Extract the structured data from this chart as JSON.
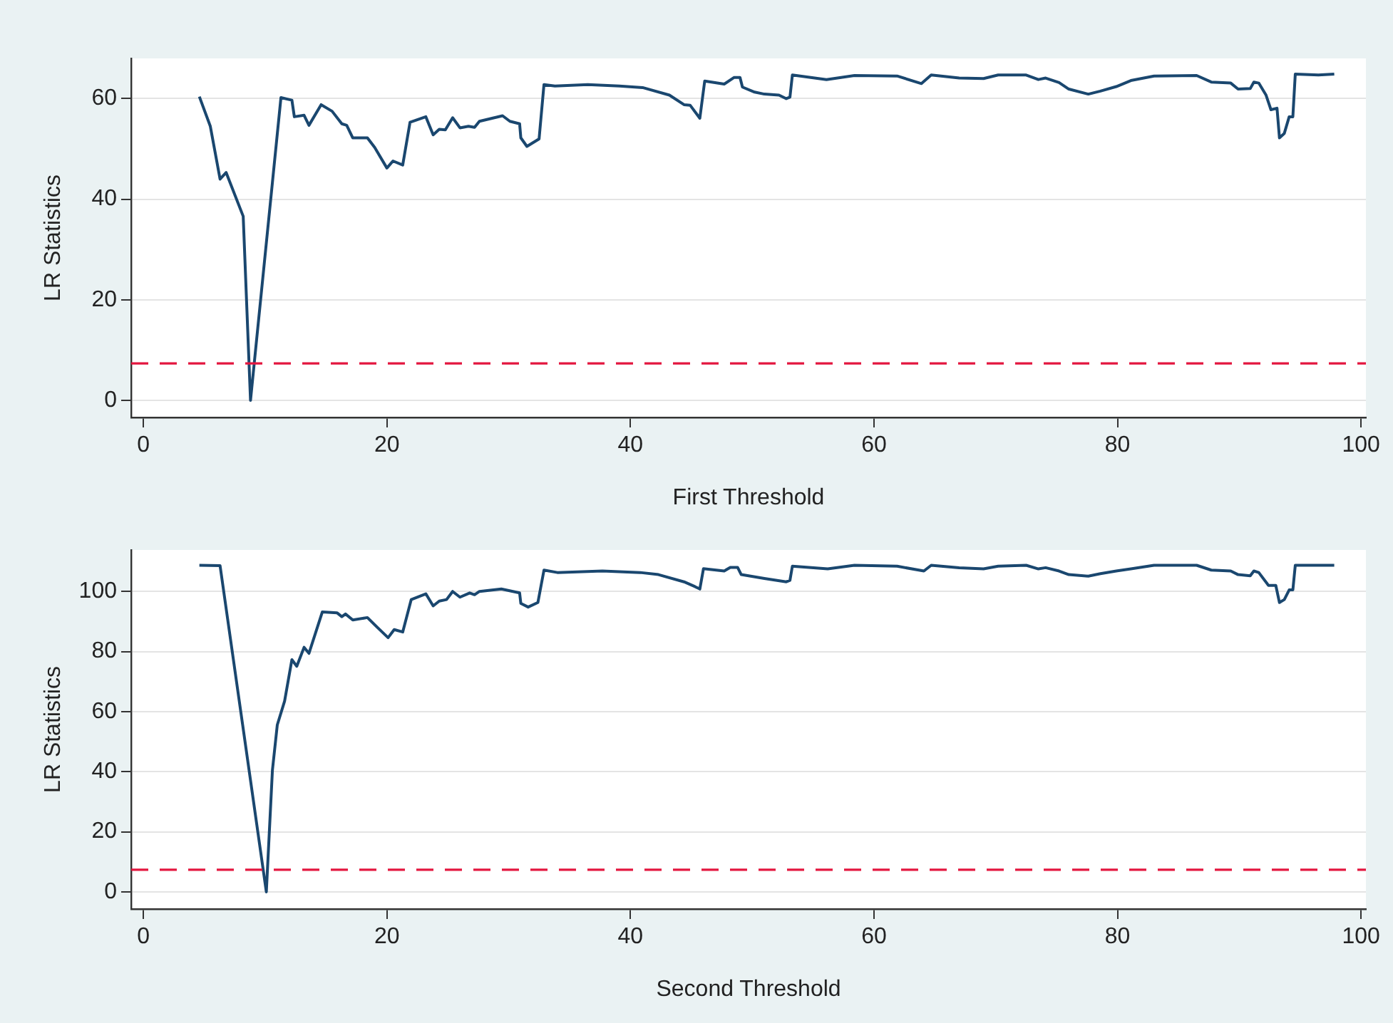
{
  "chart_data": [
    {
      "type": "line",
      "xlabel": "First Threshold",
      "ylabel": "LR Statistics",
      "xlim": [
        -1,
        100.4
      ],
      "ylim": [
        -3.4,
        68
      ],
      "xticks": [
        0,
        20,
        40,
        60,
        80,
        100
      ],
      "yticks": [
        0,
        20,
        40,
        60
      ],
      "grid": "y",
      "marker": "none",
      "x": [
        4.6,
        5.5,
        6.3,
        6.8,
        8.2,
        8.8,
        11.3,
        12.2,
        12.4,
        13.2,
        13.6,
        14.6,
        15.5,
        16.3,
        16.7,
        17.2,
        18.4,
        19.0,
        20.0,
        20.5,
        21.3,
        21.9,
        23.2,
        23.8,
        24.3,
        24.8,
        25.4,
        26.0,
        26.7,
        27.2,
        27.6,
        29.5,
        30.1,
        30.9,
        31.0,
        31.5,
        32.5,
        32.9,
        33.8,
        36.5,
        39.1,
        41.0,
        43.2,
        44.4,
        44.9,
        45.7,
        46.1,
        47.7,
        48.5,
        49.0,
        49.2,
        50.2,
        51.0,
        52.2,
        52.8,
        53.1,
        53.3,
        56.1,
        58.4,
        61.9,
        63.9,
        64.7,
        67.0,
        69.0,
        70.2,
        72.5,
        73.5,
        74.1,
        75.2,
        76.0,
        77.6,
        78.6,
        79.9,
        81.1,
        83.0,
        86.5,
        87.7,
        89.3,
        89.9,
        90.9,
        91.2,
        91.6,
        92.2,
        92.6,
        93.1,
        93.3,
        93.7,
        94.1,
        94.4,
        94.6,
        96.5,
        97.8
      ],
      "series": [
        {
          "color": "#1a476f",
          "values": [
            60.4,
            54.5,
            44,
            45.3,
            36.6,
            0,
            60.2,
            59.7,
            56.4,
            56.7,
            54.7,
            58.8,
            57.5,
            55,
            54.7,
            52.2,
            52.2,
            50.3,
            46.2,
            47.6,
            46.8,
            55.3,
            56.4,
            52.8,
            53.9,
            53.8,
            56.2,
            54.2,
            54.5,
            54.3,
            55.5,
            56.6,
            55.5,
            55,
            52.2,
            50.5,
            52,
            62.8,
            62.5,
            62.8,
            62.5,
            62.2,
            60.7,
            58.8,
            58.7,
            56.1,
            63.5,
            62.9,
            64.2,
            64.2,
            62.3,
            61.3,
            60.9,
            60.7,
            60.0,
            60.3,
            64.7,
            63.8,
            64.6,
            64.5,
            63.0,
            64.7,
            64.1,
            64.0,
            64.7,
            64.7,
            63.8,
            64.1,
            63.2,
            61.9,
            60.9,
            61.5,
            62.4,
            63.6,
            64.5,
            64.6,
            63.3,
            63.1,
            61.9,
            62.0,
            63.3,
            63.1,
            60.7,
            57.8,
            58.1,
            52.2,
            53.1,
            56.4,
            56.4,
            64.9,
            64.7,
            64.9
          ]
        }
      ],
      "ref_lines": [
        {
          "axis": "y",
          "value": 7.35,
          "color": "#e3163f",
          "line_style": "dashed"
        }
      ]
    },
    {
      "type": "line",
      "xlabel": "Second Threshold",
      "ylabel": "LR Statistics",
      "xlim": [
        -1,
        100.4
      ],
      "ylim": [
        -5.7,
        113.8
      ],
      "xticks": [
        0,
        20,
        40,
        60,
        80,
        100
      ],
      "yticks": [
        0,
        20,
        40,
        60,
        80,
        100
      ],
      "grid": "y",
      "marker": "none",
      "x": [
        4.6,
        6.3,
        10.1,
        10.6,
        11.0,
        11.6,
        12.2,
        12.6,
        13.2,
        13.6,
        14.7,
        15.9,
        16.3,
        16.6,
        17.2,
        18.4,
        19.2,
        20.1,
        20.6,
        21.3,
        22.0,
        23.2,
        23.8,
        24.3,
        24.9,
        25.4,
        26.0,
        26.8,
        27.2,
        27.6,
        29.4,
        30.9,
        31.0,
        31.6,
        32.4,
        32.9,
        34.0,
        37.7,
        40.8,
        42.3,
        44.4,
        45.3,
        45.7,
        46.0,
        47.7,
        48.2,
        48.8,
        49.1,
        51.0,
        52.8,
        53.1,
        53.3,
        56.2,
        58.4,
        61.9,
        64.1,
        64.7,
        67.0,
        69.0,
        70.2,
        72.5,
        73.5,
        74.1,
        75.2,
        76.0,
        77.6,
        78.6,
        79.9,
        81.1,
        83.0,
        86.5,
        87.7,
        89.3,
        89.9,
        90.9,
        91.2,
        91.6,
        92.4,
        93.0,
        93.3,
        93.7,
        94.1,
        94.4,
        94.6,
        97.8
      ],
      "series": [
        {
          "color": "#1a476f",
          "values": [
            108.7,
            108.6,
            0,
            40.5,
            55.6,
            63.5,
            77.3,
            75.1,
            81.4,
            79.4,
            93.2,
            92.9,
            91.6,
            92.5,
            90.5,
            91.3,
            88.1,
            84.6,
            87.3,
            86.5,
            97.3,
            99.2,
            95.2,
            96.8,
            97.3,
            100,
            98.1,
            99.5,
            98.9,
            100,
            100.8,
            99.5,
            96,
            94.8,
            96.3,
            107.1,
            106.3,
            106.8,
            106.3,
            105.6,
            103.2,
            101.6,
            100.8,
            107.6,
            106.8,
            108,
            108,
            105.6,
            104.3,
            103.2,
            103.7,
            108.4,
            107.5,
            108.7,
            108.4,
            106.8,
            108.7,
            107.9,
            107.5,
            108.4,
            108.7,
            107.5,
            107.9,
            106.8,
            105.6,
            105.1,
            105.9,
            106.8,
            107.5,
            108.7,
            108.7,
            107.1,
            106.8,
            105.6,
            105.2,
            106.8,
            106.3,
            102,
            102,
            96.3,
            97.3,
            100.5,
            100.5,
            108.7,
            108.7
          ]
        }
      ],
      "ref_lines": [
        {
          "axis": "y",
          "value": 7.35,
          "color": "#e3163f",
          "line_style": "dashed"
        }
      ]
    }
  ]
}
